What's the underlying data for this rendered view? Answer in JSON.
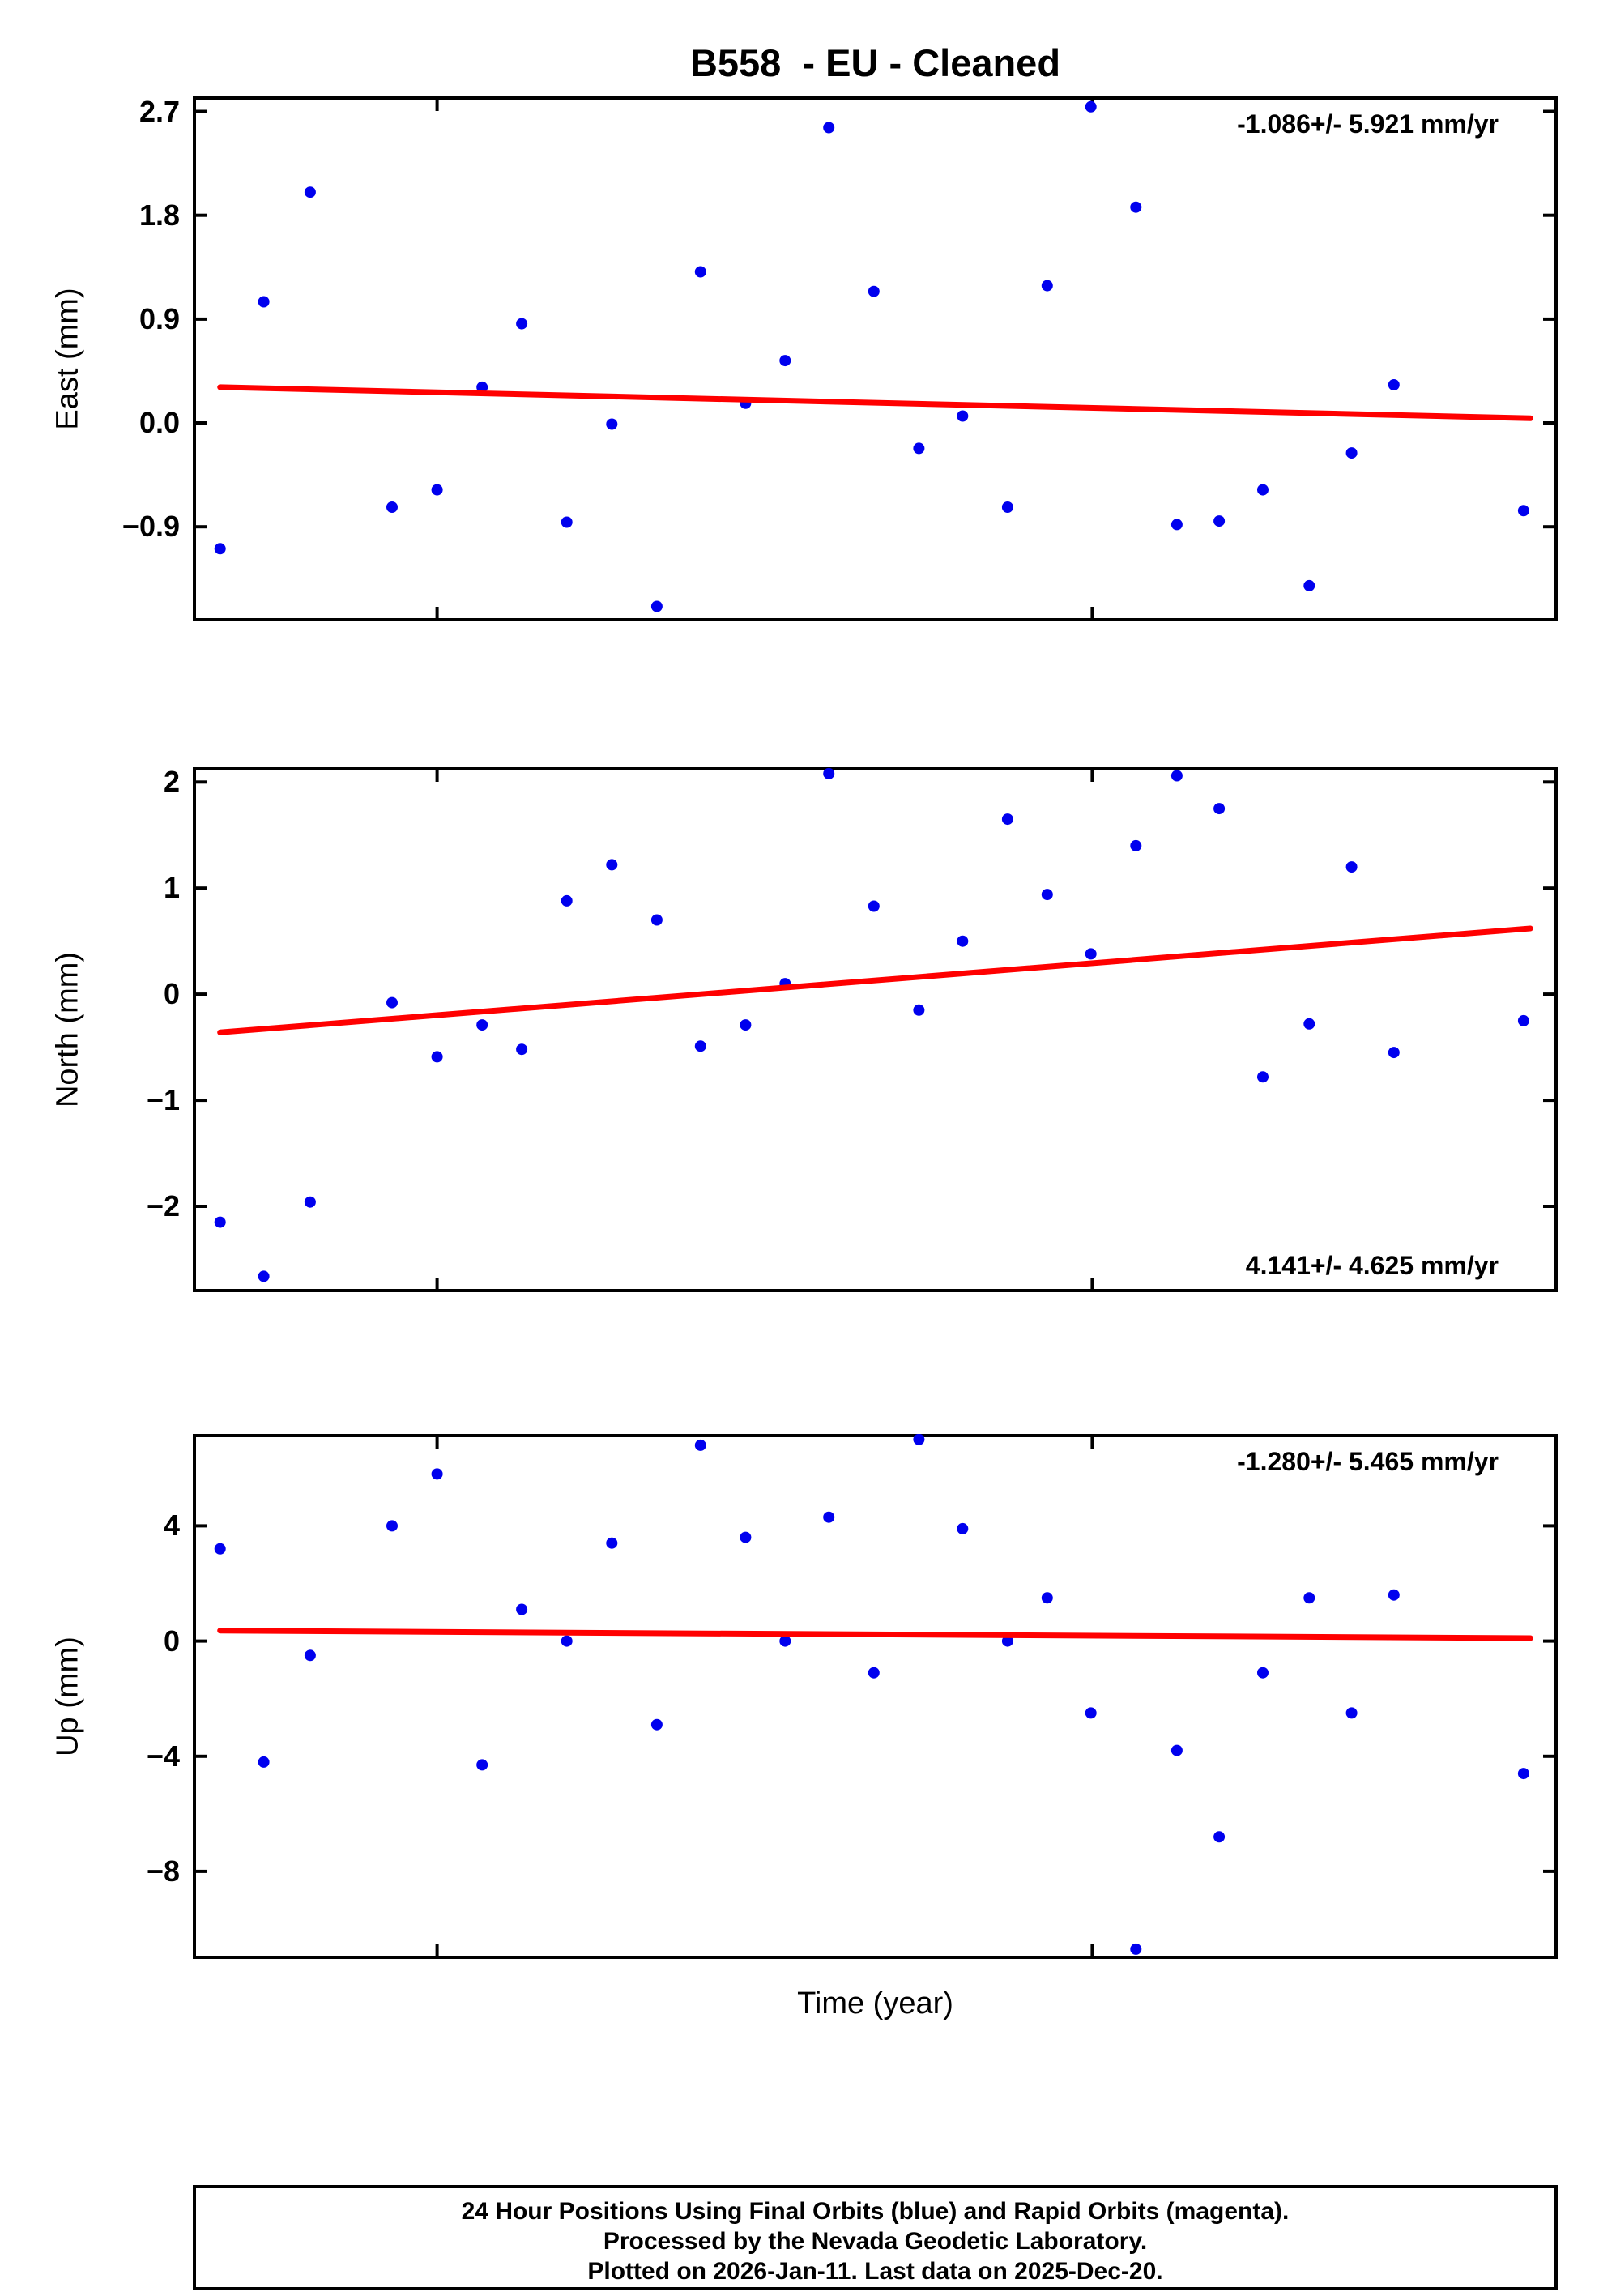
{
  "title": "B558  - EU - Cleaned",
  "xlabel": "Time (year)",
  "colors": {
    "points": "#0000ee",
    "trend": "#ff0000",
    "frame": "#000000",
    "background": "#ffffff"
  },
  "footer": {
    "line1": "24 Hour Positions Using Final Orbits (blue) and Rapid Orbits (magenta).",
    "line2": "Processed by the Nevada Geodetic Laboratory.",
    "line3": "Plotted on 2026-Jan-11. Last data on 2025-Dec-20."
  },
  "chart_data": [
    {
      "type": "scatter",
      "name": "east",
      "ylabel": "East (mm)",
      "annotation": "-1.086+/- 5.921 mm/yr",
      "annotation_position": "top-right",
      "ylim": [
        -1.72,
        2.83
      ],
      "yticks": [
        -0.9,
        0.0,
        0.9,
        1.8,
        2.7
      ],
      "ytick_labels": [
        "−0.9",
        "0.0",
        "0.9",
        "1.8",
        "2.7"
      ],
      "xlim": [
        0,
        1
      ],
      "xticks": [
        0.179,
        0.659
      ],
      "x": [
        0.02,
        0.052,
        0.086,
        0.146,
        0.179,
        0.212,
        0.241,
        0.274,
        0.307,
        0.34,
        0.372,
        0.405,
        0.434,
        0.466,
        0.499,
        0.532,
        0.564,
        0.597,
        0.626,
        0.658,
        0.691,
        0.721,
        0.752,
        0.784,
        0.818,
        0.849,
        0.88,
        0.975
      ],
      "y": [
        -1.09,
        1.05,
        2.0,
        -0.73,
        -0.58,
        0.31,
        0.86,
        -0.86,
        -0.01,
        -1.59,
        1.31,
        0.17,
        0.54,
        2.56,
        1.14,
        -0.22,
        0.06,
        -0.73,
        1.19,
        2.74,
        1.87,
        -0.88,
        -0.85,
        -0.58,
        -1.41,
        -0.26,
        0.33,
        -0.76
      ],
      "trend": {
        "x1": 0.02,
        "y1": 0.31,
        "x2": 0.98,
        "y2": 0.04
      }
    },
    {
      "type": "scatter",
      "name": "north",
      "ylabel": "North (mm)",
      "annotation": "4.141+/- 4.625 mm/yr",
      "annotation_position": "bottom-right",
      "ylim": [
        -2.81,
        2.14
      ],
      "yticks": [
        -2,
        -1,
        0,
        1,
        2
      ],
      "ytick_labels": [
        "−2",
        "−1",
        "0",
        "1",
        "2"
      ],
      "xlim": [
        0,
        1
      ],
      "xticks": [
        0.179,
        0.659
      ],
      "x": [
        0.02,
        0.052,
        0.086,
        0.146,
        0.179,
        0.212,
        0.241,
        0.274,
        0.307,
        0.34,
        0.372,
        0.405,
        0.434,
        0.466,
        0.499,
        0.532,
        0.564,
        0.597,
        0.626,
        0.658,
        0.691,
        0.721,
        0.752,
        0.784,
        0.818,
        0.849,
        0.88,
        0.975
      ],
      "y": [
        -2.15,
        -2.66,
        -1.96,
        -0.08,
        -0.59,
        -0.29,
        -0.52,
        0.88,
        1.22,
        0.7,
        -0.49,
        -0.29,
        0.1,
        2.08,
        0.83,
        -0.15,
        0.5,
        1.65,
        0.94,
        0.38,
        1.4,
        2.06,
        1.75,
        -0.78,
        -0.28,
        1.2,
        -0.55,
        -0.25
      ],
      "trend": {
        "x1": 0.02,
        "y1": -0.36,
        "x2": 0.98,
        "y2": 0.62
      }
    },
    {
      "type": "scatter",
      "name": "up",
      "ylabel": "Up (mm)",
      "annotation": "-1.280+/- 5.465 mm/yr",
      "annotation_position": "top-right",
      "ylim": [
        -11.04,
        7.19
      ],
      "yticks": [
        -8,
        -4,
        0,
        4
      ],
      "ytick_labels": [
        "−8",
        "−4",
        "0",
        "4"
      ],
      "xlim": [
        0,
        1
      ],
      "xticks": [
        0.179,
        0.659
      ],
      "x": [
        0.02,
        0.052,
        0.086,
        0.146,
        0.179,
        0.212,
        0.241,
        0.274,
        0.307,
        0.34,
        0.372,
        0.405,
        0.434,
        0.466,
        0.499,
        0.532,
        0.564,
        0.597,
        0.626,
        0.658,
        0.691,
        0.721,
        0.752,
        0.784,
        0.818,
        0.849,
        0.88,
        0.975
      ],
      "y": [
        3.2,
        -4.2,
        -0.5,
        4.0,
        5.8,
        -4.3,
        1.1,
        0.0,
        3.4,
        -2.9,
        6.8,
        3.6,
        0.0,
        4.3,
        -1.1,
        7.0,
        3.9,
        0.0,
        1.5,
        -2.5,
        -10.7,
        -3.8,
        -6.8,
        -1.1,
        1.5,
        -2.5,
        1.6,
        -4.6
      ],
      "trend": {
        "x1": 0.02,
        "y1": 0.36,
        "x2": 0.98,
        "y2": 0.1
      }
    }
  ]
}
